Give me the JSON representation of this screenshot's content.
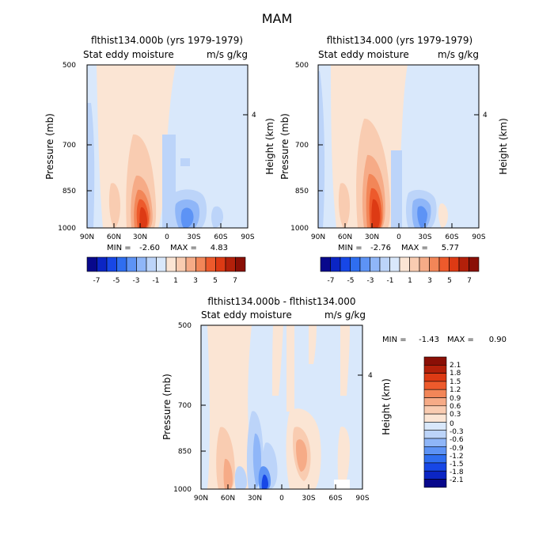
{
  "title": "MAM",
  "colors": {
    "neg7": "#08088c",
    "neg6": "#0b25c4",
    "neg5": "#1747e6",
    "neg4": "#2f6ef0",
    "neg3": "#5d93f5",
    "neg2": "#8fb6f8",
    "neg1": "#bcd4f9",
    "neg0": "#d9e8fb",
    "pos0": "#fbe5d4",
    "pos1": "#f9ccb1",
    "pos2": "#f6ab87",
    "pos3": "#f28658",
    "pos4": "#ed5a2c",
    "pos5": "#dd3a14",
    "pos6": "#b3200a",
    "pos7": "#8a0f06"
  },
  "chart_data": [
    {
      "type": "heatmap",
      "title": "flthist134.000b (yrs 1979-1979)",
      "subtitle_left": "Stat eddy moisture",
      "subtitle_right": "m/s g/kg",
      "ylabel": "Pressure (mb)",
      "ylabel_right": "Height (km)",
      "xticks": [
        "90N",
        "60N",
        "30N",
        "0",
        "30S",
        "60S",
        "90S"
      ],
      "yticks": [
        "500",
        "700",
        "850",
        "1000"
      ],
      "yticks_right": [
        "4"
      ],
      "min_label": "MIN =",
      "min": "-2.60",
      "max_label": "MAX =",
      "max": "4.83",
      "colorbar_labels": [
        "-7",
        "-5",
        "-3",
        "-1",
        "1",
        "3",
        "5",
        "7"
      ]
    },
    {
      "type": "heatmap",
      "title": "flthist134.000 (yrs 1979-1979)",
      "subtitle_left": "Stat eddy moisture",
      "subtitle_right": "m/s g/kg",
      "ylabel": "Pressure (mb)",
      "ylabel_right": "Height (km)",
      "xticks": [
        "90N",
        "60N",
        "30N",
        "0",
        "30S",
        "60S",
        "90S"
      ],
      "yticks": [
        "500",
        "700",
        "850",
        "1000"
      ],
      "yticks_right": [
        "4"
      ],
      "min_label": "MIN =",
      "min": "-2.76",
      "max_label": "MAX =",
      "max": "5.77",
      "colorbar_labels": [
        "-7",
        "-5",
        "-3",
        "-1",
        "1",
        "3",
        "5",
        "7"
      ]
    },
    {
      "type": "heatmap",
      "title": "flthist134.000b - flthist134.000",
      "subtitle_left": "Stat eddy moisture",
      "subtitle_right": "m/s g/kg",
      "ylabel": "Pressure (mb)",
      "ylabel_right": "Height (km)",
      "xticks": [
        "90N",
        "60N",
        "30N",
        "0",
        "30S",
        "60S",
        "90S"
      ],
      "yticks": [
        "500",
        "700",
        "850",
        "1000"
      ],
      "yticks_right": [
        "4"
      ],
      "min_label": "MIN =",
      "min": "-1.43",
      "max_label": "MAX =",
      "max": "0.90",
      "colorbar_labels": [
        "2.1",
        "1.8",
        "1.5",
        "1.2",
        "0.9",
        "0.6",
        "0.3",
        "0",
        "-0.3",
        "-0.6",
        "-0.9",
        "-1.2",
        "-1.5",
        "-1.8",
        "-2.1"
      ]
    }
  ]
}
